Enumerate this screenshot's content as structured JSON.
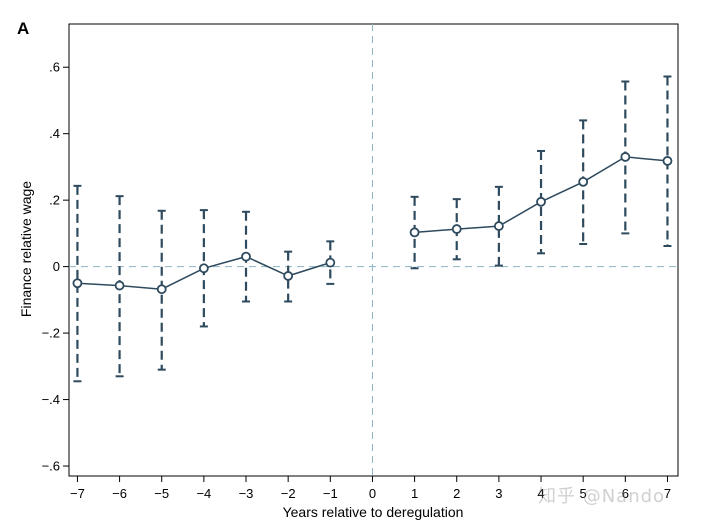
{
  "panel_label": "A",
  "watermark": "知乎 @Nando",
  "colors": {
    "series": "#2e4a5e",
    "ref_line": "#8fb3c4",
    "frame": "#000000"
  },
  "chart_data": {
    "type": "scatter",
    "title": "",
    "xlabel": "Years relative to deregulation",
    "ylabel": "Finance relative wage",
    "xlim": [
      -7.2,
      7.25
    ],
    "ylim": [
      -0.63,
      0.73
    ],
    "xticks": [
      -7,
      -6,
      -5,
      -4,
      -3,
      -2,
      -1,
      0,
      1,
      2,
      3,
      4,
      5,
      6,
      7
    ],
    "xtick_labels": [
      "−7",
      "−6",
      "−5",
      "−4",
      "−3",
      "−2",
      "−1",
      "0",
      "1",
      "2",
      "3",
      "4",
      "5",
      "6",
      "7"
    ],
    "yticks": [
      -0.6,
      -0.4,
      -0.2,
      0,
      0.2,
      0.4,
      0.6
    ],
    "ytick_labels": [
      "−.6",
      "−.4",
      "−.2",
      "0",
      ".2",
      ".4",
      ".6"
    ],
    "reference_lines": {
      "x": 0,
      "y": 0
    },
    "grid": false,
    "series": [
      {
        "segment": "pre",
        "x": [
          -7,
          -6,
          -5,
          -4,
          -3,
          -2,
          -1
        ],
        "y": [
          -0.05,
          -0.057,
          -0.068,
          -0.005,
          0.03,
          -0.028,
          0.012
        ],
        "lower": [
          -0.345,
          -0.33,
          -0.31,
          -0.18,
          -0.105,
          -0.105,
          -0.052
        ],
        "upper": [
          0.243,
          0.212,
          0.168,
          0.17,
          0.165,
          0.045,
          0.076
        ]
      },
      {
        "segment": "post",
        "x": [
          1,
          2,
          3,
          4,
          5,
          6,
          7
        ],
        "y": [
          0.103,
          0.113,
          0.122,
          0.195,
          0.255,
          0.33,
          0.318
        ],
        "lower": [
          -0.005,
          0.022,
          0.003,
          0.04,
          0.068,
          0.1,
          0.062
        ],
        "upper": [
          0.21,
          0.203,
          0.24,
          0.348,
          0.44,
          0.557,
          0.572
        ]
      }
    ]
  }
}
